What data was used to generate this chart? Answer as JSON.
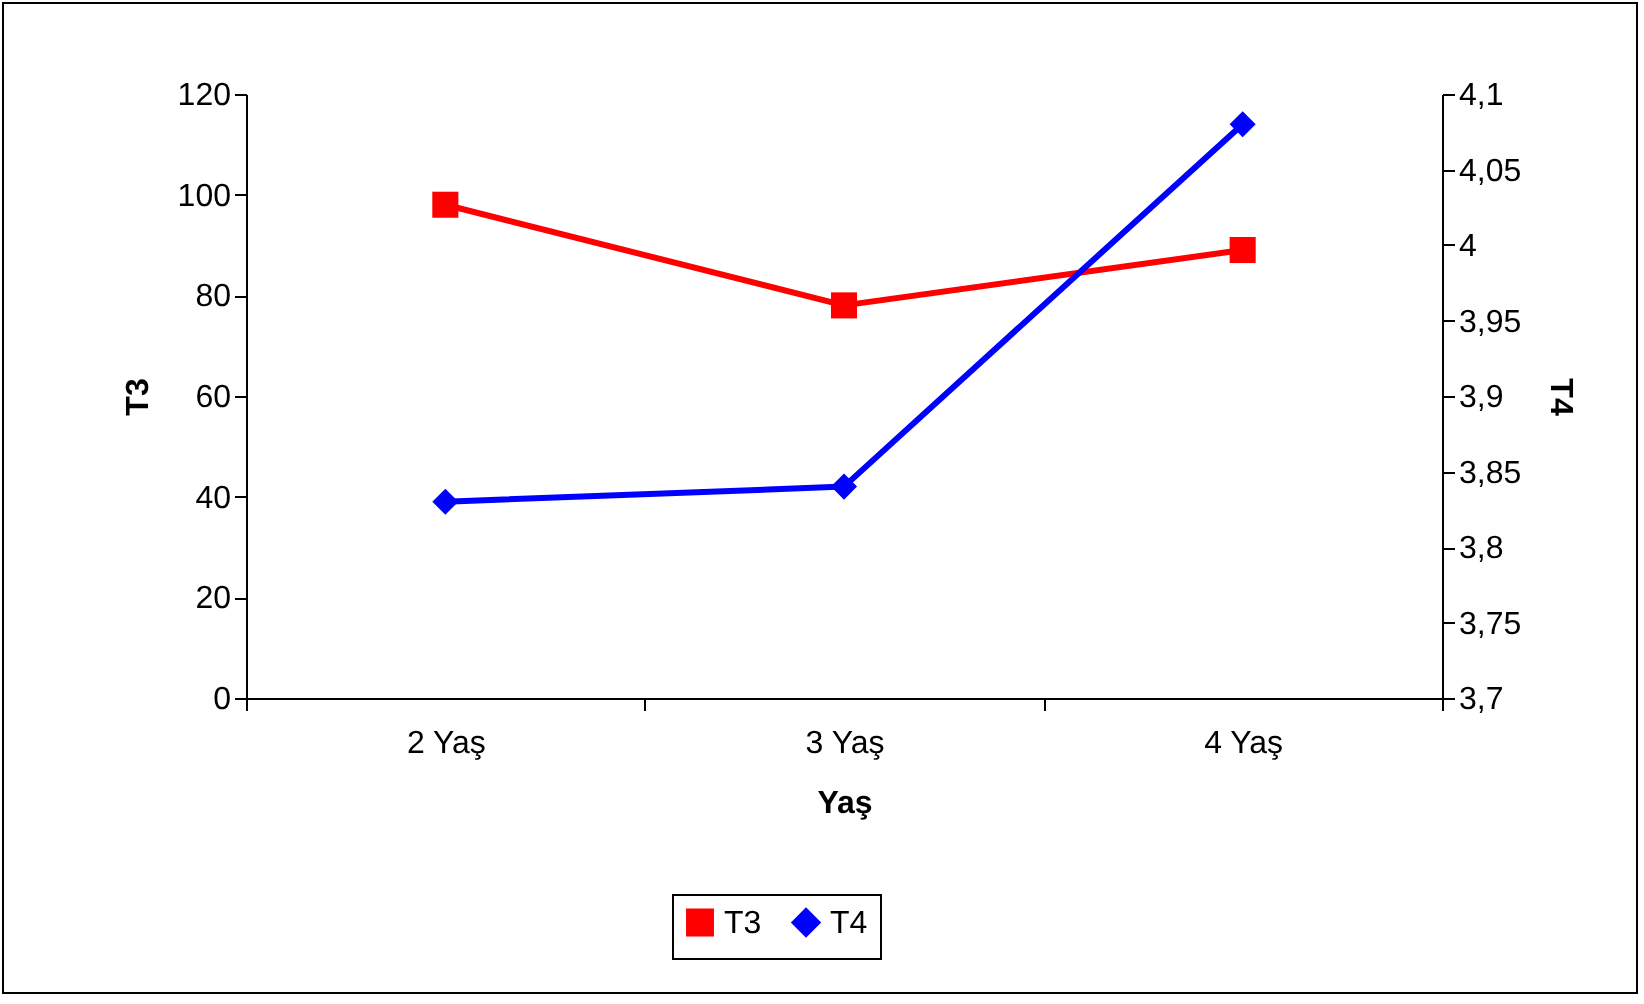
{
  "chart_data": {
    "type": "line",
    "xlabel": "Yaş",
    "ylabel": "T3",
    "y2label": "T4",
    "categories": [
      "2 Yaş",
      "3 Yaş",
      "4 Yaş"
    ],
    "series": [
      {
        "name": "T3",
        "color": "#ff0000",
        "marker": "square",
        "values": [
          98,
          78,
          89
        ]
      },
      {
        "name": "T4",
        "color": "#0000ff",
        "marker": "diamond",
        "axis": "y2",
        "values": [
          3.83,
          3.84,
          4.08
        ]
      }
    ],
    "ylim": [
      0,
      120
    ],
    "yticks": [
      0,
      20,
      40,
      60,
      80,
      100,
      120
    ],
    "y2lim": [
      3.7,
      4.1
    ],
    "y2ticks": [
      {
        "value": 3.7,
        "label": "3,7"
      },
      {
        "value": 3.75,
        "label": "3,75"
      },
      {
        "value": 3.8,
        "label": "3,8"
      },
      {
        "value": 3.85,
        "label": "3,85"
      },
      {
        "value": 3.9,
        "label": "3,9"
      },
      {
        "value": 3.95,
        "label": "3,95"
      },
      {
        "value": 4,
        "label": "4"
      },
      {
        "value": 4.05,
        "label": "4,05"
      },
      {
        "value": 4.1,
        "label": "4,1"
      }
    ],
    "grid": false,
    "legend": "bottom",
    "line_style": "solid"
  }
}
